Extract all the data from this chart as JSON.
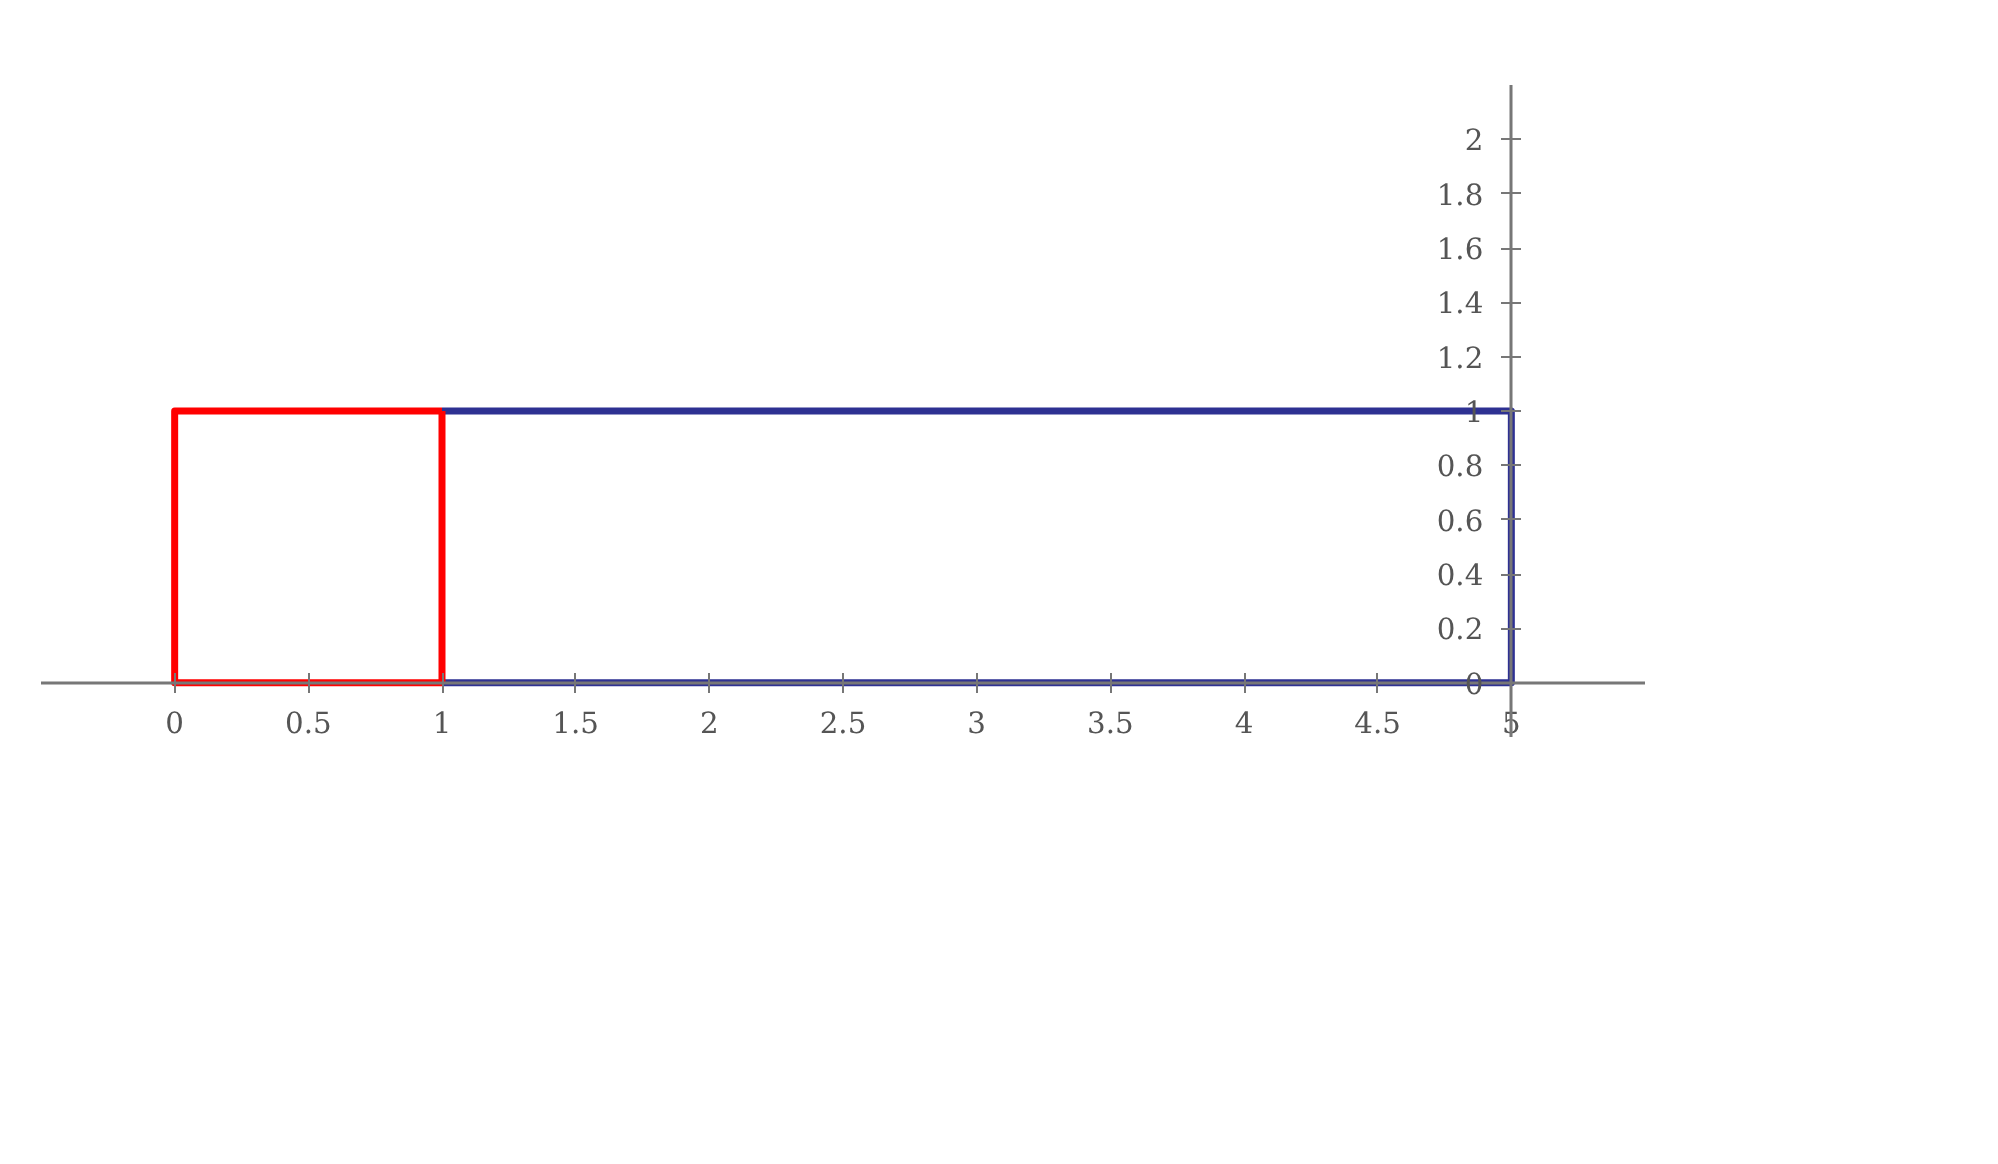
{
  "chart_data": {
    "type": "line",
    "series": [
      {
        "color": "#2e3192",
        "x": [
          1,
          5,
          5,
          1
        ],
        "values": [
          1,
          1,
          0,
          0
        ]
      },
      {
        "color": "#ff0000",
        "x": [
          1,
          0,
          0,
          1,
          null,
          1,
          1
        ],
        "values": [
          1,
          1,
          0,
          0,
          null,
          0,
          1
        ]
      }
    ],
    "xlim": [
      -0.5,
      5.5
    ],
    "ylim": [
      -0.2,
      2.2
    ],
    "xticks": [
      0,
      0.5,
      1,
      1.5,
      2,
      2.5,
      3,
      3.5,
      4,
      4.5,
      5
    ],
    "yticks": [
      0,
      0.2,
      0.4,
      0.6,
      0.8,
      1,
      1.2,
      1.4,
      1.6,
      1.8,
      2
    ],
    "grid": false,
    "marker": "none",
    "line_style": "solid"
  }
}
